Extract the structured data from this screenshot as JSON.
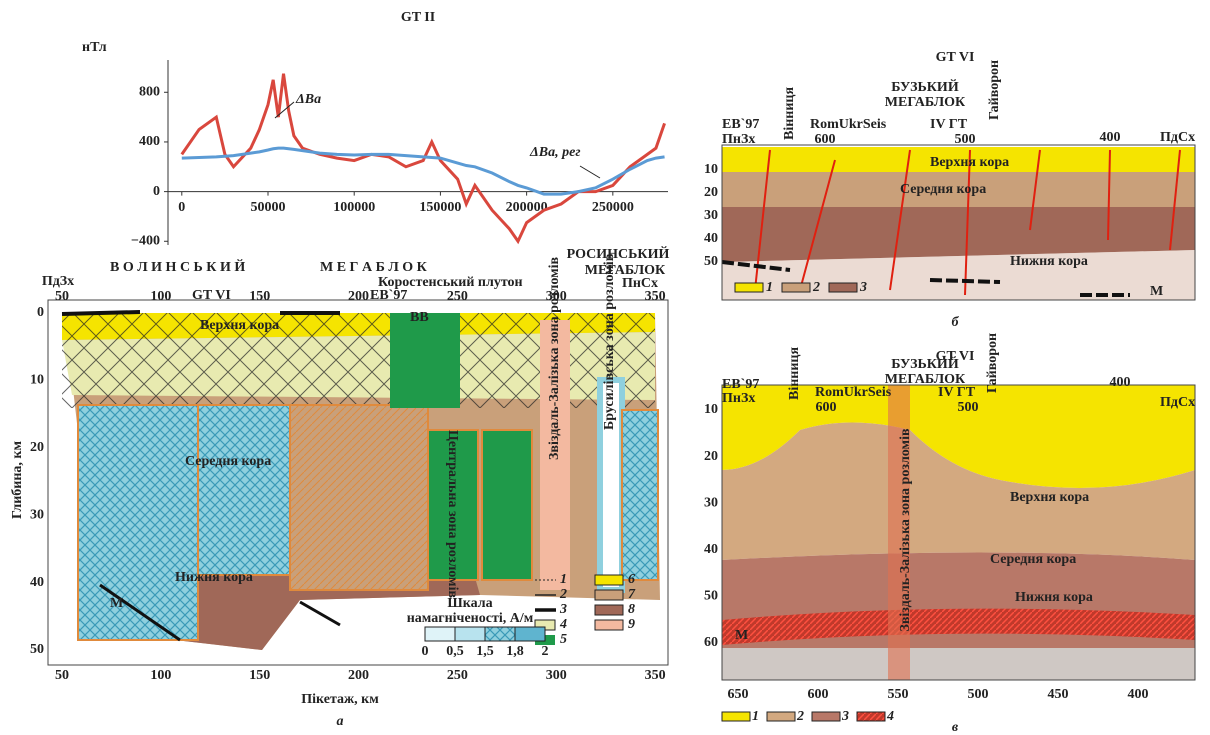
{
  "chart_data": {
    "type": "line",
    "title": "GT II",
    "y_label": "нТл",
    "x": [
      0,
      10000,
      20000,
      25000,
      30000,
      40000,
      45000,
      50000,
      53000,
      56000,
      59000,
      62000,
      65000,
      70000,
      80000,
      90000,
      100000,
      110000,
      120000,
      130000,
      140000,
      145000,
      150000,
      160000,
      165000,
      170000,
      180000,
      190000,
      195000,
      200000,
      210000,
      220000,
      230000,
      240000,
      250000,
      260000,
      270000,
      275000,
      280000
    ],
    "series": [
      {
        "name": "ΔBa",
        "color": "#d9473d",
        "values": [
          300,
          500,
          600,
          300,
          200,
          350,
          500,
          700,
          900,
          600,
          950,
          650,
          450,
          350,
          300,
          270,
          250,
          300,
          280,
          200,
          250,
          400,
          250,
          100,
          -100,
          50,
          -150,
          -300,
          -400,
          -250,
          -150,
          -100,
          0,
          0,
          50,
          200,
          300,
          350,
          550
        ]
      },
      {
        "name": "ΔBa, рег",
        "color": "#5b9bd5",
        "values": [
          270,
          275,
          280,
          285,
          290,
          310,
          320,
          335,
          345,
          350,
          350,
          345,
          340,
          330,
          310,
          300,
          295,
          300,
          300,
          290,
          280,
          275,
          270,
          230,
          210,
          200,
          150,
          80,
          50,
          30,
          -20,
          -20,
          0,
          30,
          100,
          180,
          250,
          270,
          280
        ]
      }
    ],
    "xlim": [
      -8000,
      282000
    ],
    "ylim": [
      -430,
      1060
    ],
    "xticks": [
      0,
      50000,
      100000,
      150000,
      200000,
      250000
    ],
    "yticks": [
      {
        "value": -400,
        "label": "−400"
      },
      0,
      400,
      800
    ]
  },
  "panel_a": {
    "header": {
      "sw": "ПдЗх",
      "west_block": "В О Л И Н С Ь К И Й",
      "west_block2": "М Е Г А Б Л О К",
      "east_block": "РОСИНСЬКИЙ",
      "east_block2": "МЕГАБЛОК",
      "ne": "ПнСх",
      "gt": "GT VI",
      "eb": "EB`97",
      "pluton": "Коростенський плутон"
    },
    "x_ticks": [
      "50",
      "100",
      "150",
      "200",
      "250",
      "300",
      "350"
    ],
    "y_ticks": [
      "0",
      "10",
      "20",
      "30",
      "40",
      "50"
    ],
    "y_label": "Глибина, км",
    "x_label": "Пікетаж, км",
    "layers": {
      "upper": "Верхня кора",
      "middle": "Середня кора",
      "lower": "Нижня кора"
    },
    "zones": {
      "central": "Центральна зона розломів",
      "zvizdal": "Звіздаль-Залізька зона розломів",
      "brusyliv": "Брусилівська зона розломів"
    },
    "vv": "ВВ",
    "moho": "М",
    "legend": [
      "1",
      "2",
      "3",
      "4",
      "5",
      "6",
      "7",
      "8",
      "9"
    ],
    "scale": {
      "title": [
        "Шкала",
        "намагніченості, А/м"
      ],
      "ticks": [
        "0",
        "0,5",
        "1,5",
        "1,8",
        "2"
      ]
    },
    "caption": "а"
  },
  "panel_b": {
    "title": "GT VI",
    "labels": {
      "eb": "EB`97",
      "nw": "ПнЗх",
      "vinnytsia": "Вінниця",
      "seis": "RomUkrSeis",
      "block": "БУЗЬКИЙ",
      "block2": "МЕГАБЛОК",
      "gt": "IV ГТ",
      "haivoron": "Гайворон",
      "se": "ПдСх"
    },
    "x_ticks": [
      "600",
      "500",
      "400"
    ],
    "y_ticks": [
      "10",
      "20",
      "30",
      "40",
      "50"
    ],
    "layers": {
      "upper": "Верхня кора",
      "middle": "Середня кора",
      "lower": "Нижня кора"
    },
    "moho": "М",
    "legend": [
      "1",
      "2",
      "3"
    ],
    "caption": "б"
  },
  "panel_c": {
    "title": "GT VI",
    "labels": {
      "eb": "EB`97",
      "nw": "ПнЗх",
      "vinnytsia": "Вінниця",
      "seis": "RomUkrSeis",
      "block": "БУЗЬКИЙ",
      "block2": "МЕГАБЛОК",
      "gt": "IV ГТ",
      "haivoron": "Гайворон",
      "se": "ПдСх"
    },
    "top_ticks": [
      "600",
      "500",
      "400"
    ],
    "x_ticks": [
      "650",
      "600",
      "550",
      "500",
      "450",
      "400"
    ],
    "y_ticks": [
      "10",
      "20",
      "30",
      "40",
      "50",
      "60"
    ],
    "layers": {
      "upper": "Верхня кора",
      "middle": "Середня кора",
      "lower": "Нижня кора"
    },
    "zone": "Звіздаль-Залізька зона розломів",
    "moho": "М",
    "legend": [
      "1",
      "2",
      "3",
      "4"
    ],
    "caption": "в"
  }
}
